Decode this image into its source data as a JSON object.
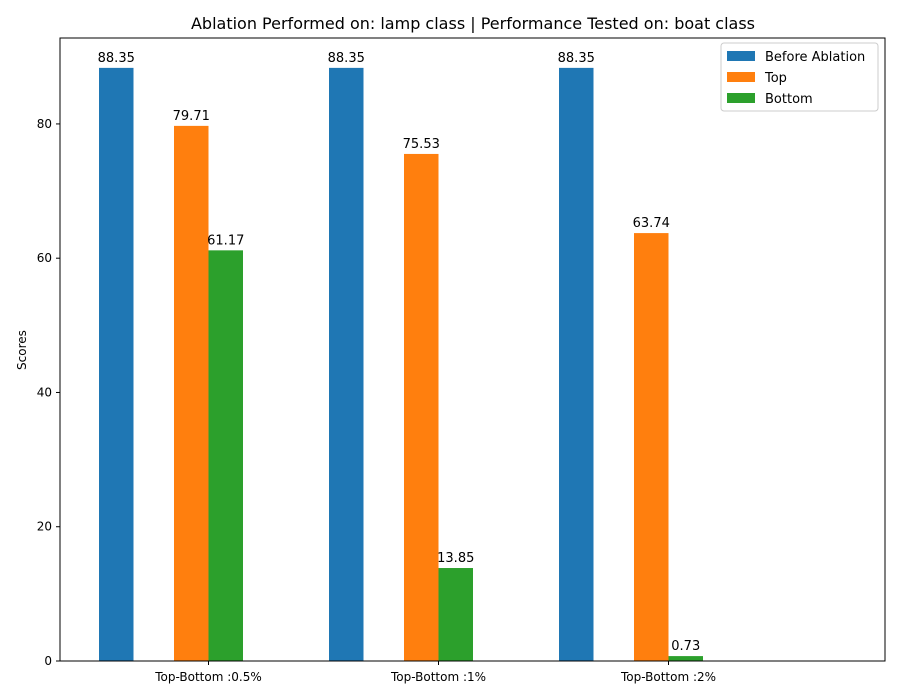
{
  "chart_data": {
    "type": "bar",
    "title": "Ablation Performed on: lamp class | Performance Tested on: boat class",
    "xlabel": "",
    "ylabel": "Scores",
    "categories": [
      "Top-Bottom :0.5%",
      "Top-Bottom :1%",
      "Top-Bottom :2%"
    ],
    "series": [
      {
        "name": "Before Ablation",
        "values": [
          88.35,
          88.35,
          88.35
        ],
        "color": "#1f77b4"
      },
      {
        "name": "Top",
        "values": [
          79.71,
          75.53,
          63.74
        ],
        "color": "#ff7f0e"
      },
      {
        "name": "Bottom",
        "values": [
          61.17,
          13.85,
          0.73
        ],
        "color": "#2ca02c"
      }
    ],
    "yticks": [
      0,
      20,
      40,
      60,
      80
    ],
    "ylim": [
      0,
      92.8
    ],
    "legend_position": "top-right",
    "grid": false
  }
}
